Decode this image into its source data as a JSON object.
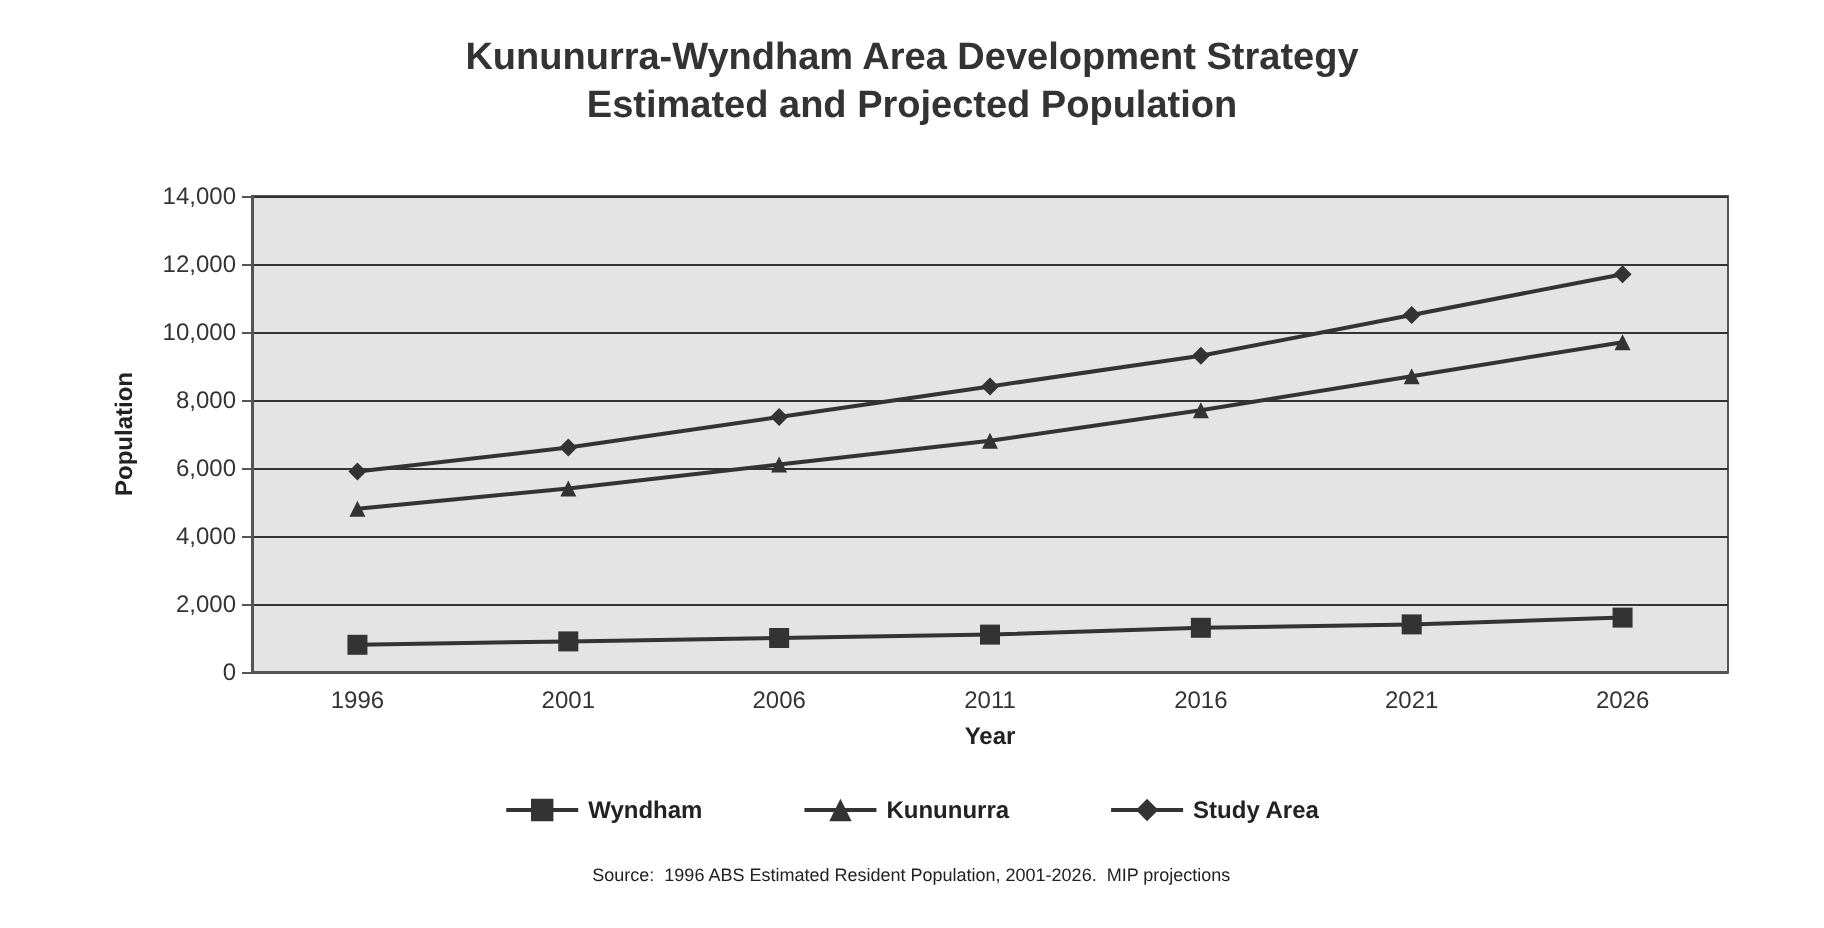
{
  "chart_data": {
    "type": "line",
    "title": "Kununurra-Wyndham Area Development Strategy\nEstimated and Projected Population",
    "xlabel": "Year",
    "ylabel": "Population",
    "categories": [
      "1996",
      "2001",
      "2006",
      "2011",
      "2016",
      "2021",
      "2026"
    ],
    "series": [
      {
        "name": "Wyndham",
        "color": "#333333",
        "marker": "square",
        "values": [
          800,
          900,
          1000,
          1100,
          1300,
          1400,
          1600
        ]
      },
      {
        "name": "Kununurra",
        "color": "#333333",
        "marker": "triangle",
        "values": [
          4800,
          5400,
          6100,
          6800,
          7700,
          8700,
          9700
        ]
      },
      {
        "name": "Study Area",
        "color": "#333333",
        "marker": "diamond",
        "values": [
          5900,
          6600,
          7500,
          8400,
          9300,
          10500,
          11700
        ]
      }
    ],
    "ylim": [
      0,
      14000
    ],
    "yticks": [
      0,
      {
        "value": 2000,
        "label": "2,000"
      },
      {
        "value": 4000,
        "label": "4,000"
      },
      {
        "value": 6000,
        "label": "6,000"
      },
      {
        "value": 8000,
        "label": "8,000"
      },
      {
        "value": 10000,
        "label": "10,000"
      },
      {
        "value": 12000,
        "label": "12,000"
      },
      {
        "value": 14000,
        "label": "14,000"
      }
    ],
    "grid": "y",
    "legend": "bottom",
    "line_style": "solid",
    "annotations": [
      "Source:  1996 ABS Estimated Resident Population, 2001-2026.  MIP projections"
    ]
  }
}
